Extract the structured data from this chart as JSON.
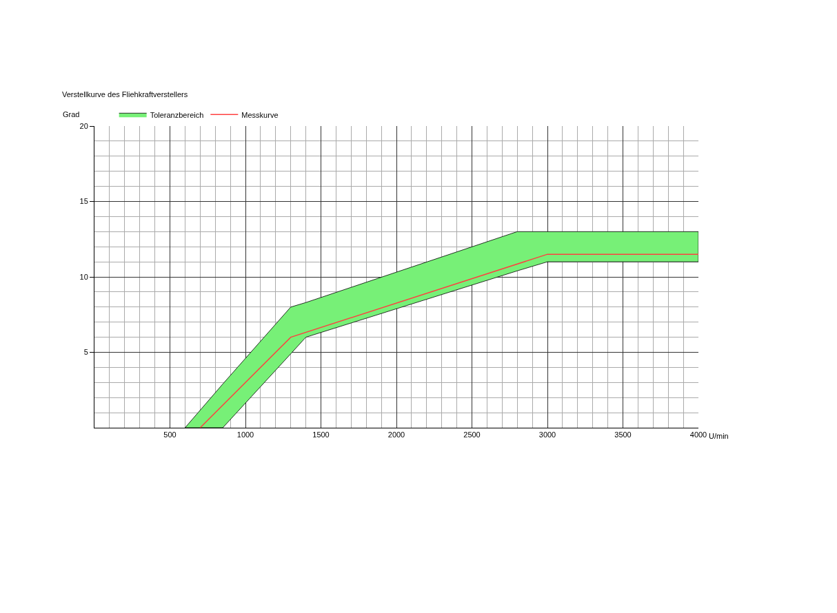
{
  "chart_data": {
    "type": "line",
    "title": "Verstellkurve des Fliehkraftverstellers",
    "xlabel": "U/min",
    "ylabel": "Grad",
    "xlim": [
      0,
      4000
    ],
    "xticks": [
      500,
      1000,
      1500,
      2000,
      2500,
      3000,
      3500,
      4000
    ],
    "ylim": [
      0,
      20
    ],
    "yticks": [
      5,
      10,
      15,
      20
    ],
    "grid": true,
    "legend": "top left",
    "marker": "none",
    "line_style": "solid",
    "series": [
      {
        "name": "Toleranzbereich",
        "type": "area",
        "color": "#77f077",
        "x": [
          600,
          850,
          1300,
          1400,
          2800,
          3000,
          4000
        ],
        "values": [
          null,
          null,
          null,
          null,
          null,
          null,
          null
        ],
        "lower": [
          0,
          0,
          4.9,
          6,
          10.4,
          11,
          11
        ],
        "upper": [
          0,
          2.9,
          8,
          8.3,
          13,
          13,
          13
        ]
      },
      {
        "name": "Messkurve",
        "type": "line",
        "color": "#ff4040",
        "x": [
          700,
          1300,
          3000,
          4000
        ],
        "values": [
          0,
          6,
          11.5,
          11.5
        ]
      }
    ]
  }
}
